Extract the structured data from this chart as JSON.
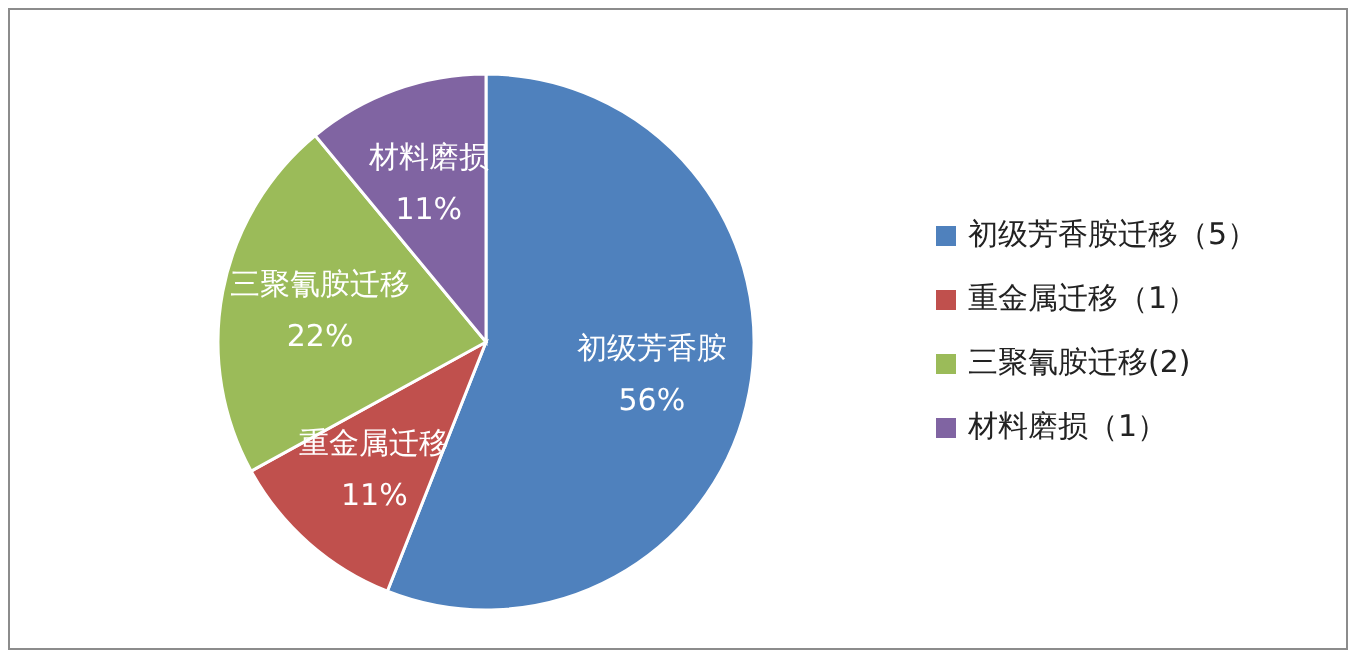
{
  "chart_data": {
    "type": "pie",
    "categories": [
      "初级芳香胺迁移（5）",
      "重金属迁移（1）",
      "三聚氰胺迁移(2)",
      "材料磨损（1）"
    ],
    "values": [
      56,
      11,
      22,
      11
    ],
    "colors": [
      "#4f81bd",
      "#c0504d",
      "#9bbb59",
      "#8064a2"
    ],
    "value_labels": [
      "初级芳香胺\n56%",
      "重金属迁移\n11%",
      "三聚氰胺迁移\n22%",
      "材料磨损\n11%"
    ],
    "legend": "right"
  }
}
